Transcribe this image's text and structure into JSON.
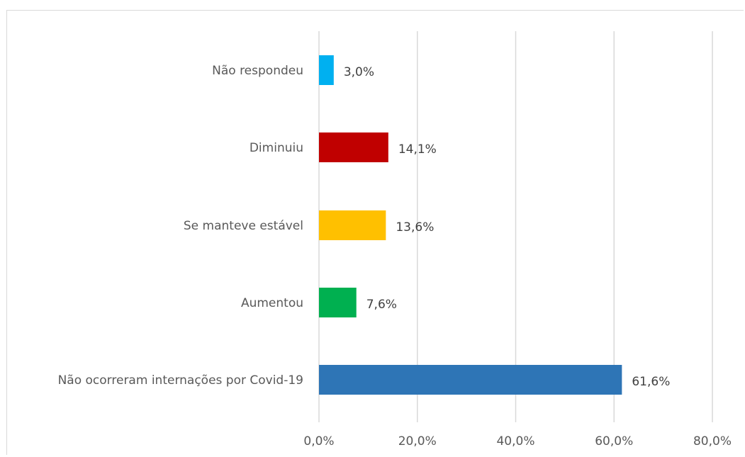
{
  "chart_data": {
    "type": "bar",
    "orientation": "horizontal",
    "title": "",
    "xlabel": "",
    "ylabel": "",
    "categories": [
      "Não respondeu",
      "Diminuiu",
      "Se manteve estável",
      "Aumentou",
      "Não ocorreram internações por Covid-19"
    ],
    "values": [
      3.0,
      14.1,
      13.6,
      7.6,
      61.6
    ],
    "value_labels": [
      "3,0%",
      "14,1%",
      "13,6%",
      "7,6%",
      "61,6%"
    ],
    "colors": [
      "#00b0f0",
      "#c00000",
      "#ffc000",
      "#00b050",
      "#2e75b6"
    ],
    "xlim": [
      0,
      80
    ],
    "x_ticks": [
      0,
      20,
      40,
      60,
      80
    ],
    "x_tick_labels": [
      "0,0%",
      "20,0%",
      "40,0%",
      "60,0%",
      "80,0%"
    ],
    "grid": true,
    "legend": "none"
  }
}
